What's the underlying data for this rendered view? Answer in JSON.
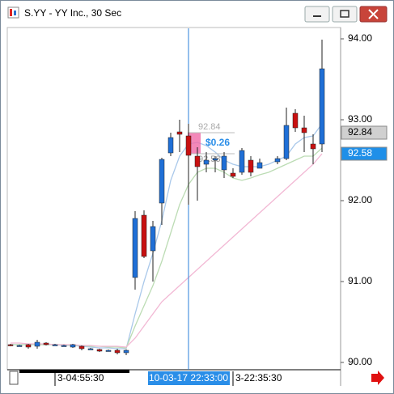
{
  "window": {
    "title": "S.YY - YY Inc., 30 Sec"
  },
  "chart_data": {
    "type": "candlestick",
    "categories": [
      null,
      null,
      null,
      null,
      null,
      "3-04:55:30",
      null,
      null,
      null,
      null,
      null,
      null,
      null,
      null,
      null,
      null,
      null,
      null,
      null,
      null,
      "10-03-17 22:33:00",
      null,
      null,
      null,
      null,
      "3-22:35:30",
      null,
      null,
      null,
      null,
      null,
      null,
      null,
      null,
      null,
      null
    ],
    "open": [
      90.22,
      90.21,
      90.22,
      90.2,
      90.24,
      90.22,
      90.21,
      90.19,
      90.2,
      90.17,
      90.16,
      90.15,
      90.15,
      90.12,
      91.05,
      91.82,
      91.38,
      91.97,
      92.59,
      92.85,
      92.8,
      92.55,
      92.45,
      92.5,
      92.38,
      92.34,
      92.35,
      92.5,
      92.4,
      null,
      92.48,
      92.52,
      93.08,
      92.9,
      92.7,
      92.7
    ],
    "high": [
      90.23,
      90.22,
      90.23,
      90.28,
      90.25,
      90.23,
      90.22,
      90.23,
      90.21,
      90.18,
      90.17,
      90.16,
      90.17,
      90.16,
      91.87,
      91.88,
      91.75,
      92.53,
      92.84,
      93.0,
      92.95,
      92.66,
      92.6,
      92.55,
      92.6,
      92.4,
      92.65,
      92.55,
      92.52,
      null,
      92.55,
      93.15,
      93.13,
      93.05,
      92.82,
      93.99
    ],
    "low": [
      90.2,
      90.2,
      90.17,
      90.17,
      90.21,
      90.21,
      90.2,
      90.18,
      90.15,
      90.16,
      90.13,
      90.14,
      90.1,
      90.09,
      90.9,
      91.29,
      91.0,
      91.7,
      92.55,
      92.6,
      91.95,
      92.0,
      92.35,
      92.35,
      92.28,
      92.28,
      92.32,
      92.3,
      92.4,
      null,
      92.45,
      92.5,
      92.85,
      92.6,
      92.45,
      92.6
    ],
    "close": [
      90.21,
      90.21,
      90.19,
      90.25,
      90.22,
      90.22,
      90.21,
      90.22,
      90.17,
      90.17,
      90.14,
      90.15,
      90.12,
      90.15,
      91.78,
      91.31,
      91.68,
      92.51,
      92.78,
      92.82,
      92.56,
      92.42,
      92.5,
      92.52,
      92.55,
      92.3,
      92.62,
      92.35,
      92.47,
      null,
      92.52,
      92.93,
      92.9,
      92.84,
      92.64,
      93.63
    ],
    "up_color": "#1f6fd6",
    "down_color": "#c81010",
    "series": [
      {
        "color": "#a9c8ea",
        "values": [
          90.22,
          90.22,
          90.22,
          90.22,
          90.22,
          90.22,
          90.21,
          90.21,
          90.2,
          90.19,
          90.18,
          90.18,
          90.17,
          90.17,
          90.6,
          91.0,
          91.35,
          91.75,
          92.25,
          92.55,
          92.7,
          92.72,
          92.68,
          92.6,
          92.5,
          92.45,
          92.42,
          92.42,
          92.42,
          92.45,
          92.5,
          92.55,
          92.7,
          92.78,
          92.8,
          92.95
        ]
      },
      {
        "color": "#bcdcb4",
        "values": [
          90.22,
          90.22,
          90.22,
          90.22,
          90.22,
          90.22,
          90.22,
          90.21,
          90.21,
          90.2,
          90.2,
          90.19,
          90.19,
          90.18,
          90.45,
          90.7,
          90.95,
          91.25,
          91.6,
          91.95,
          92.2,
          92.35,
          92.4,
          92.4,
          92.35,
          92.28,
          92.25,
          92.28,
          92.32,
          92.35,
          92.4,
          92.45,
          92.5,
          92.55,
          92.55,
          92.65
        ]
      },
      {
        "color": "#f2b8d4",
        "values": [
          90.24,
          90.24,
          90.23,
          90.23,
          90.23,
          90.22,
          90.22,
          90.22,
          90.21,
          90.21,
          90.2,
          90.2,
          90.2,
          90.19,
          90.3,
          90.45,
          90.6,
          90.75,
          90.85,
          90.95,
          91.05,
          91.15,
          91.25,
          91.35,
          91.45,
          91.55,
          91.65,
          91.75,
          91.85,
          91.95,
          92.05,
          92.15,
          92.25,
          92.35,
          92.45,
          92.58
        ]
      }
    ],
    "ylim": [
      89.91,
      94.13
    ],
    "yticks": [
      {
        "value": 90,
        "label": "90.00"
      },
      {
        "value": 91,
        "label": "91.00"
      },
      {
        "value": 92,
        "label": "92.00"
      },
      {
        "value": 93,
        "label": "93.00"
      },
      {
        "value": 94,
        "label": "94.00"
      }
    ],
    "price_markers": [
      {
        "value": 92.84,
        "label": "92.84",
        "color": "#d0d0d0"
      },
      {
        "value": 92.58,
        "label": "92.58",
        "color": "#1f8fe8"
      }
    ],
    "ruler": {
      "high": 92.84,
      "high_label": "92.84",
      "low": 92.58,
      "low_label": "92.58",
      "delta": "$0.26"
    }
  }
}
